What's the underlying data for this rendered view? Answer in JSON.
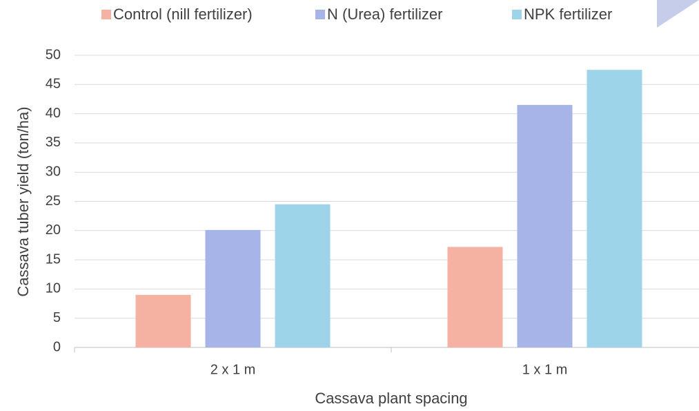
{
  "chart_data": {
    "type": "bar",
    "categories": [
      "2  x 1 m",
      "1 x 1 m"
    ],
    "series": [
      {
        "name": "Control (nill fertilizer)",
        "color": "#f5b2a3",
        "values": [
          9,
          17.2
        ]
      },
      {
        "name": "N (Urea) fertilizer",
        "color": "#a6b4e8",
        "values": [
          20.1,
          41.5
        ]
      },
      {
        "name": "NPK fertilizer",
        "color": "#9dd4e9",
        "values": [
          24.5,
          47.5
        ]
      }
    ],
    "ylim": [
      0,
      50
    ],
    "yticks": [
      0,
      5,
      10,
      15,
      20,
      25,
      30,
      35,
      40,
      45,
      50
    ],
    "ylabel": "Cassava tuber yield (ton/ha)",
    "xlabel": "Cassava plant spacing",
    "grid": true,
    "legend": "top"
  }
}
